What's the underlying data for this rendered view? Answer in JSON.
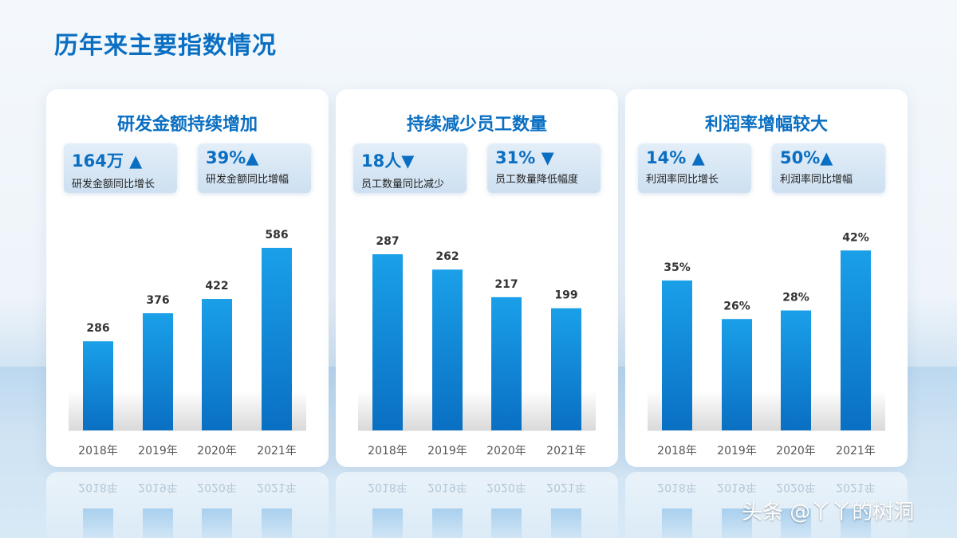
{
  "page": {
    "title": "历年来主要指数情况"
  },
  "watermark": "头条 @丫丫的树洞",
  "colors": {
    "accent": "#0a6fc2",
    "bar_top": "#1aa0e8",
    "bar_bottom": "#0a6fc2"
  },
  "panels": [
    {
      "title": "研发金额持续增加",
      "stats": [
        {
          "value": "164万 ▲",
          "label": "研发金额同比增长"
        },
        {
          "value": "39%▲",
          "label": "研发金额同比增幅"
        }
      ]
    },
    {
      "title": "持续减少员工数量",
      "stats": [
        {
          "value": "18人▼",
          "label": "员工数量同比减少"
        },
        {
          "value": "31% ▼",
          "label": "员工数量降低幅度"
        }
      ]
    },
    {
      "title": "利润率增幅较大",
      "stats": [
        {
          "value": "14% ▲",
          "label": "利润率同比增长"
        },
        {
          "value": "50%▲",
          "label": "利润率同比增幅"
        }
      ]
    }
  ],
  "chart_data": [
    {
      "type": "bar",
      "categories": [
        "2018年",
        "2019年",
        "2020年",
        "2021年"
      ],
      "values": [
        286,
        376,
        422,
        586
      ],
      "labels": [
        "286",
        "376",
        "422",
        "586"
      ],
      "title": "研发金额持续增加",
      "ylim": [
        0,
        660
      ]
    },
    {
      "type": "bar",
      "categories": [
        "2018年",
        "2019年",
        "2020年",
        "2021年"
      ],
      "values": [
        287,
        262,
        217,
        199
      ],
      "labels": [
        "287",
        "262",
        "217",
        "199"
      ],
      "title": "持续减少员工数量",
      "ylim": [
        0,
        335
      ]
    },
    {
      "type": "bar",
      "categories": [
        "2018年",
        "2019年",
        "2020年",
        "2021年"
      ],
      "values": [
        35,
        26,
        28,
        42
      ],
      "labels": [
        "35%",
        "26%",
        "28%",
        "42%"
      ],
      "title": "利润率增幅较大",
      "ylim": [
        0,
        48
      ]
    }
  ]
}
